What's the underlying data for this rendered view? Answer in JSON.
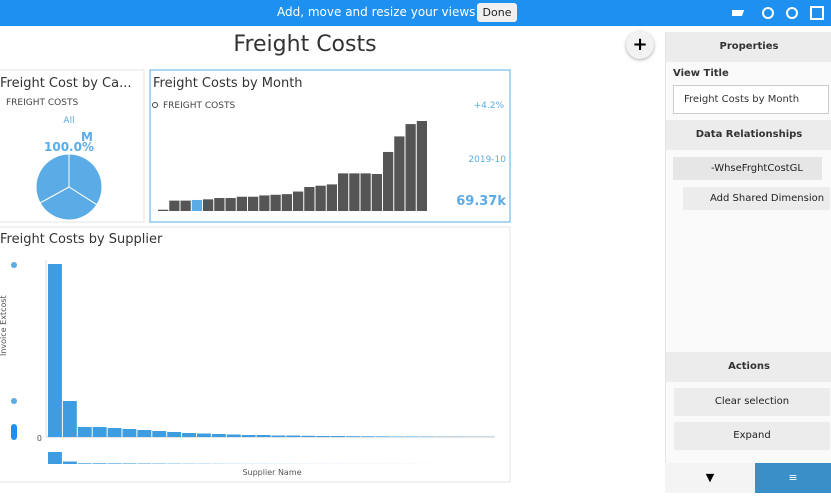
{
  "topbar": {
    "message": "Add, move and resize your views",
    "done": "Done"
  },
  "dashboard": {
    "title": "Freight Costs"
  },
  "views": [
    {
      "title": "Freight Cost by Ca...",
      "legend": "FREIGHT COSTS",
      "filter": "All",
      "label": "M",
      "percent": "100.0%",
      "slices": [
        34,
        33,
        33
      ],
      "color": "#5aabe6"
    },
    {
      "title": "Freight Costs by Month",
      "legend": "FREIGHT COSTS",
      "change": "+4.2%",
      "period": "2019-10",
      "total": "69.37k",
      "values": [
        1,
        8,
        8,
        8.5,
        9,
        10,
        10,
        11,
        11,
        12,
        12.5,
        13,
        15,
        18.5,
        19.5,
        20.5,
        29,
        29,
        29,
        28.5,
        45.5,
        57.5,
        67,
        69.37
      ],
      "highlight": 3
    },
    {
      "title": "Freight Costs by Supplier",
      "y_label": "Invoice Extcost",
      "y_tick": "0",
      "x_label": "Supplier Name",
      "values": [
        173,
        36,
        10,
        10,
        9,
        8,
        7,
        6,
        5,
        4,
        3.5,
        3,
        2.5,
        2,
        2,
        1.5,
        1.5,
        1.2,
        1,
        1,
        0.8,
        0.7,
        0.6,
        0.5,
        0.5,
        0.4,
        0.3,
        0.3,
        0.2,
        0.2
      ]
    }
  ],
  "properties": {
    "header": "Properties",
    "view_title_label": "View Title",
    "view_title_value": "Freight Costs by Month",
    "data_header": "Data Relationships",
    "source": "-WhseFrghtCostGL",
    "add_dimension": "Add Shared Dimension",
    "actions_header": "Actions",
    "actions": [
      "Clear selection",
      "Expand"
    ]
  }
}
